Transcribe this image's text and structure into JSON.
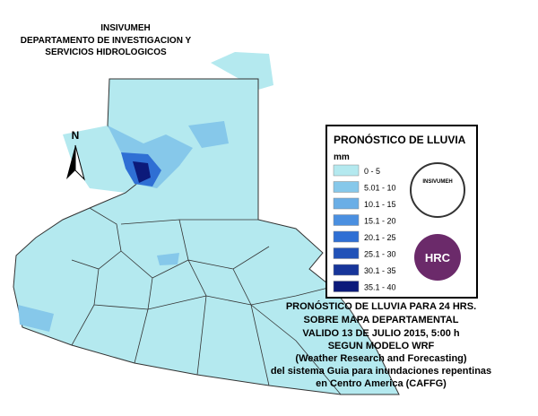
{
  "header": {
    "lines": [
      "INSIVUMEH",
      "DEPARTAMENTO DE INVESTIGACION Y",
      "SERVICIOS HIDROLOGICOS"
    ]
  },
  "north_arrow": {
    "label": "N"
  },
  "legend": {
    "title": "PRONÓSTICO DE LLUVIA",
    "unit": "mm",
    "items": [
      {
        "label": "0 - 5",
        "color": "#b4e9ef"
      },
      {
        "label": "5.01 - 10",
        "color": "#86c8ea"
      },
      {
        "label": "10.1 - 15",
        "color": "#6aaee6"
      },
      {
        "label": "15.1 - 20",
        "color": "#4a8fe0"
      },
      {
        "label": "20.1 - 25",
        "color": "#2f6fd4"
      },
      {
        "label": "25.1 - 30",
        "color": "#2152b8"
      },
      {
        "label": "30.1 - 35",
        "color": "#17359a"
      },
      {
        "label": "35.1 - 40",
        "color": "#0c1a7a"
      }
    ]
  },
  "logos": [
    {
      "label": "INSIVUMEH"
    },
    {
      "label": "HRC"
    }
  ],
  "caption": {
    "lines": [
      "PRONÓSTICO DE LLUVIA PARA 24 HRS.",
      "SOBRE MAPA DEPARTAMENTAL",
      "VALIDO 13 DE JULIO 2015, 5:00 h",
      "SEGUN MODELO WRF",
      "(Weather Research and Forecasting)",
      "del sistema Guia  para inundaciones repentinas",
      "en Centro America (CAFFG)"
    ]
  }
}
